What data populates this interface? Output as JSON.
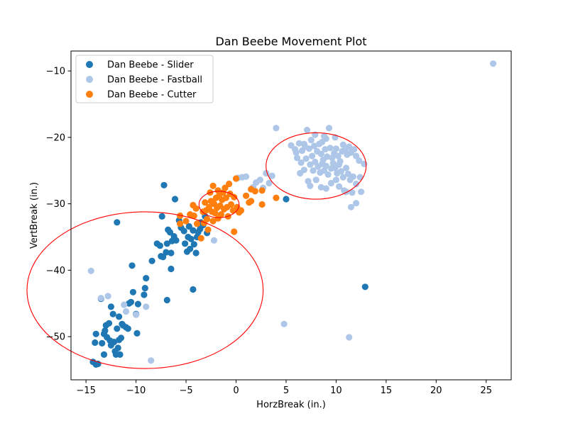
{
  "chart_data": {
    "type": "scatter",
    "title": "Dan Beebe Movement Plot",
    "xlabel": "HorzBreak (in.)",
    "ylabel": "VertBreak (in.)",
    "xlim": [
      -16.5,
      27.5
    ],
    "ylim": [
      -56.5,
      -7
    ],
    "xticks": [
      -15,
      -10,
      -5,
      0,
      5,
      10,
      15,
      20,
      25
    ],
    "xtick_labels": [
      "−15",
      "−10",
      "−5",
      "0",
      "5",
      "10",
      "15",
      "20",
      "25"
    ],
    "yticks": [
      -50,
      -40,
      -30,
      -20,
      -10
    ],
    "ytick_labels": [
      "−50",
      "−40",
      "−30",
      "−20",
      "−10"
    ],
    "grid": false,
    "legend_position": "top-left",
    "series": [
      {
        "name": "Dan Beebe - Slider",
        "color": "#1f77b4",
        "points": [
          [
            -14.3,
            -53.8
          ],
          [
            -14.0,
            -54.2
          ],
          [
            -13.8,
            -54.1
          ],
          [
            -14.1,
            -50.9
          ],
          [
            -14.0,
            -49.6
          ],
          [
            -13.4,
            -51.0
          ],
          [
            -13.2,
            -52.7
          ],
          [
            -13.2,
            -49.6
          ],
          [
            -13.1,
            -49.1
          ],
          [
            -13.0,
            -48.3
          ],
          [
            -12.9,
            -50.1
          ],
          [
            -12.7,
            -48.0
          ],
          [
            -12.6,
            -50.6
          ],
          [
            -12.5,
            -51.3
          ],
          [
            -12.4,
            -51.0
          ],
          [
            -12.2,
            -50.8
          ],
          [
            -12.1,
            -52.2
          ],
          [
            -12.0,
            -52.7
          ],
          [
            -11.8,
            -51.7
          ],
          [
            -11.7,
            -50.5
          ],
          [
            -11.9,
            -48.8
          ],
          [
            -11.6,
            -52.7
          ],
          [
            -11.5,
            -50.2
          ],
          [
            -11.4,
            -48.1
          ],
          [
            -11.3,
            -48.3
          ],
          [
            -11.0,
            -48.6
          ],
          [
            -10.8,
            -48.8
          ],
          [
            -10.7,
            -45.0
          ],
          [
            -10.5,
            -44.8
          ],
          [
            -10.3,
            -43.3
          ],
          [
            -10.0,
            -46.6
          ],
          [
            -9.9,
            -49.5
          ],
          [
            -9.8,
            -45.1
          ],
          [
            -9.2,
            -43.7
          ],
          [
            -9.1,
            -42.7
          ],
          [
            -9.0,
            -41.2
          ],
          [
            -12.5,
            -45.5
          ],
          [
            -12.3,
            -46.6
          ],
          [
            -11.7,
            -47.0
          ],
          [
            -13.5,
            -44.3
          ],
          [
            -11.9,
            -32.8
          ],
          [
            -10.4,
            -39.3
          ],
          [
            -8.4,
            -38.6
          ],
          [
            -7.9,
            -36.0
          ],
          [
            -7.6,
            -36.3
          ],
          [
            -7.5,
            -37.9
          ],
          [
            -7.3,
            -38.0
          ],
          [
            -7.4,
            -31.9
          ],
          [
            -7.2,
            -27.2
          ],
          [
            -7.0,
            -37.3
          ],
          [
            -6.9,
            -36.0
          ],
          [
            -6.8,
            -33.9
          ],
          [
            -6.6,
            -34.3
          ],
          [
            -6.5,
            -37.4
          ],
          [
            -6.4,
            -35.6
          ],
          [
            -6.2,
            -34.9
          ],
          [
            -6.0,
            -35.5
          ],
          [
            -6.1,
            -29.3
          ],
          [
            -5.7,
            -32.5
          ],
          [
            -5.5,
            -33.6
          ],
          [
            -5.2,
            -34.1
          ],
          [
            -5.1,
            -36.0
          ],
          [
            -4.9,
            -37.2
          ],
          [
            -4.8,
            -35.0
          ],
          [
            -4.7,
            -33.4
          ],
          [
            -4.6,
            -36.8
          ],
          [
            -4.5,
            -35.3
          ],
          [
            -4.3,
            -34.0
          ],
          [
            -4.2,
            -36.1
          ],
          [
            -4.0,
            -37.4
          ],
          [
            -3.9,
            -35.0
          ],
          [
            -3.8,
            -34.3
          ],
          [
            -3.6,
            -33.8
          ],
          [
            -3.5,
            -32.8
          ],
          [
            -3.3,
            -33.2
          ],
          [
            -3.1,
            -31.9
          ],
          [
            -2.9,
            -34.4
          ],
          [
            -6.9,
            -44.5
          ],
          [
            -6.5,
            -39.8
          ],
          [
            -4.3,
            -42.9
          ],
          [
            5.0,
            -29.3
          ],
          [
            12.9,
            -42.5
          ]
        ]
      },
      {
        "name": "Dan Beebe - Fastball",
        "color": "#aec7e8",
        "points": [
          [
            25.7,
            -8.9
          ],
          [
            4.0,
            -18.6
          ],
          [
            7.1,
            -18.9
          ],
          [
            8.8,
            -19.8
          ],
          [
            9.3,
            -18.6
          ],
          [
            9.0,
            -20.2
          ],
          [
            6.3,
            -20.9
          ],
          [
            5.5,
            -21.2
          ],
          [
            5.9,
            -21.8
          ],
          [
            6.0,
            -22.3
          ],
          [
            6.6,
            -22.0
          ],
          [
            6.9,
            -21.4
          ],
          [
            7.3,
            -21.7
          ],
          [
            7.6,
            -22.8
          ],
          [
            7.8,
            -21.3
          ],
          [
            8.1,
            -22.1
          ],
          [
            8.3,
            -21.0
          ],
          [
            8.5,
            -22.5
          ],
          [
            8.7,
            -23.4
          ],
          [
            8.9,
            -21.8
          ],
          [
            9.1,
            -22.9
          ],
          [
            9.4,
            -21.6
          ],
          [
            9.6,
            -23.1
          ],
          [
            9.8,
            -22.4
          ],
          [
            10.0,
            -21.7
          ],
          [
            10.2,
            -22.8
          ],
          [
            10.4,
            -23.6
          ],
          [
            10.6,
            -22.1
          ],
          [
            10.9,
            -21.9
          ],
          [
            11.1,
            -22.6
          ],
          [
            11.3,
            -21.4
          ],
          [
            11.5,
            -22.3
          ],
          [
            11.8,
            -21.8
          ],
          [
            12.0,
            -22.8
          ],
          [
            12.3,
            -23.5
          ],
          [
            6.1,
            -23.1
          ],
          [
            6.5,
            -23.8
          ],
          [
            6.8,
            -24.9
          ],
          [
            7.0,
            -23.2
          ],
          [
            7.4,
            -24.1
          ],
          [
            7.7,
            -25.0
          ],
          [
            7.9,
            -23.7
          ],
          [
            8.2,
            -24.4
          ],
          [
            8.4,
            -25.3
          ],
          [
            8.6,
            -24.0
          ],
          [
            8.8,
            -25.0
          ],
          [
            9.0,
            -24.3
          ],
          [
            9.2,
            -25.6
          ],
          [
            9.5,
            -24.7
          ],
          [
            9.7,
            -23.9
          ],
          [
            9.9,
            -24.6
          ],
          [
            10.1,
            -25.4
          ],
          [
            10.3,
            -24.1
          ],
          [
            10.5,
            -25.1
          ],
          [
            10.7,
            -26.0
          ],
          [
            11.0,
            -24.6
          ],
          [
            11.2,
            -25.5
          ],
          [
            11.4,
            -26.4
          ],
          [
            11.7,
            -25.9
          ],
          [
            12.0,
            -27.0
          ],
          [
            12.4,
            -26.0
          ],
          [
            12.8,
            -24.0
          ],
          [
            6.4,
            -25.4
          ],
          [
            7.2,
            -26.6
          ],
          [
            7.4,
            -27.3
          ],
          [
            8.0,
            -26.4
          ],
          [
            8.5,
            -27.5
          ],
          [
            9.0,
            -27.7
          ],
          [
            9.5,
            -26.9
          ],
          [
            10.0,
            -26.4
          ],
          [
            10.3,
            -27.4
          ],
          [
            10.8,
            -28.0
          ],
          [
            11.6,
            -28.3
          ],
          [
            12.0,
            -29.9
          ],
          [
            11.5,
            -30.5
          ],
          [
            12.5,
            -28.2
          ],
          [
            11.0,
            -28.2
          ],
          [
            3.0,
            -25.4
          ],
          [
            3.6,
            -25.8
          ],
          [
            2.4,
            -26.4
          ],
          [
            1.7,
            -27.5
          ],
          [
            1.0,
            -25.9
          ],
          [
            0.6,
            -26.0
          ],
          [
            0.2,
            -26.1
          ],
          [
            2.0,
            -26.8
          ],
          [
            3.3,
            -26.9
          ],
          [
            2.7,
            -27.6
          ],
          [
            -2.2,
            -35.5
          ],
          [
            -14.5,
            -40.1
          ],
          [
            -13.5,
            -44.2
          ],
          [
            -12.8,
            -43.9
          ],
          [
            -11.2,
            -45.2
          ],
          [
            -11.0,
            -46.2
          ],
          [
            -10.0,
            -46.7
          ],
          [
            -9.0,
            -45.5
          ],
          [
            -8.5,
            -53.6
          ],
          [
            4.8,
            -48.1
          ],
          [
            11.3,
            -50.1
          ],
          [
            7.9,
            -19.6
          ],
          [
            8.6,
            -20.7
          ],
          [
            7.5,
            -20.4
          ],
          [
            9.9,
            -20.0
          ],
          [
            6.8,
            -21.0
          ],
          [
            10.7,
            -21.1
          ]
        ]
      },
      {
        "name": "Dan Beebe - Cutter",
        "color": "#ff7f0e",
        "points": [
          [
            -5.6,
            -31.8
          ],
          [
            -5.6,
            -33.0
          ],
          [
            -5.0,
            -32.6
          ],
          [
            -4.6,
            -31.6
          ],
          [
            -4.3,
            -30.2
          ],
          [
            -4.2,
            -31.8
          ],
          [
            -4.0,
            -30.7
          ],
          [
            -3.9,
            -33.0
          ],
          [
            -3.5,
            -35.2
          ],
          [
            -3.3,
            -31.2
          ],
          [
            -3.2,
            -32.9
          ],
          [
            -3.1,
            -29.8
          ],
          [
            -3.0,
            -31.0
          ],
          [
            -2.9,
            -32.3
          ],
          [
            -2.8,
            -33.9
          ],
          [
            -2.7,
            -30.5
          ],
          [
            -2.6,
            -28.3
          ],
          [
            -2.5,
            -29.6
          ],
          [
            -2.4,
            -31.2
          ],
          [
            -2.3,
            -32.6
          ],
          [
            -2.2,
            -30.0
          ],
          [
            -2.1,
            -31.4
          ],
          [
            -2.0,
            -29.1
          ],
          [
            -1.9,
            -30.6
          ],
          [
            -1.8,
            -32.2
          ],
          [
            -1.7,
            -28.8
          ],
          [
            -1.6,
            -30.3
          ],
          [
            -1.5,
            -31.6
          ],
          [
            -1.4,
            -29.4
          ],
          [
            -1.3,
            -28.3
          ],
          [
            -1.2,
            -30.8
          ],
          [
            -1.1,
            -27.6
          ],
          [
            -1.0,
            -29.1
          ],
          [
            -0.9,
            -30.5
          ],
          [
            -0.8,
            -31.9
          ],
          [
            -0.7,
            -27.0
          ],
          [
            -0.6,
            -28.5
          ],
          [
            -0.5,
            -30.1
          ],
          [
            -0.3,
            -31.0
          ],
          [
            -0.2,
            -29.0
          ],
          [
            0.0,
            -26.2
          ],
          [
            0.1,
            -30.5
          ],
          [
            0.3,
            -31.3
          ],
          [
            0.5,
            -31.0
          ],
          [
            1.0,
            -28.8
          ],
          [
            1.3,
            -29.8
          ],
          [
            1.5,
            -29.6
          ],
          [
            1.5,
            -27.8
          ],
          [
            1.9,
            -28.1
          ],
          [
            2.6,
            -28.0
          ],
          [
            2.6,
            -30.1
          ],
          [
            4.0,
            -29.1
          ],
          [
            -0.2,
            -34.2
          ],
          [
            -2.3,
            -27.3
          ],
          [
            -1.8,
            -28.0
          ]
        ]
      }
    ],
    "annotations": [
      {
        "kind": "ellipse",
        "color": "#ff0000",
        "center": [
          -9.1,
          -43.0
        ],
        "radius": [
          11.8,
          11.8
        ]
      },
      {
        "kind": "ellipse",
        "color": "#ff0000",
        "center": [
          -1.7,
          -30.1
        ],
        "radius": [
          2.0,
          2.0
        ]
      },
      {
        "kind": "ellipse",
        "color": "#ff0000",
        "center": [
          8.0,
          -24.3
        ],
        "radius": [
          5.0,
          5.0
        ]
      }
    ]
  }
}
